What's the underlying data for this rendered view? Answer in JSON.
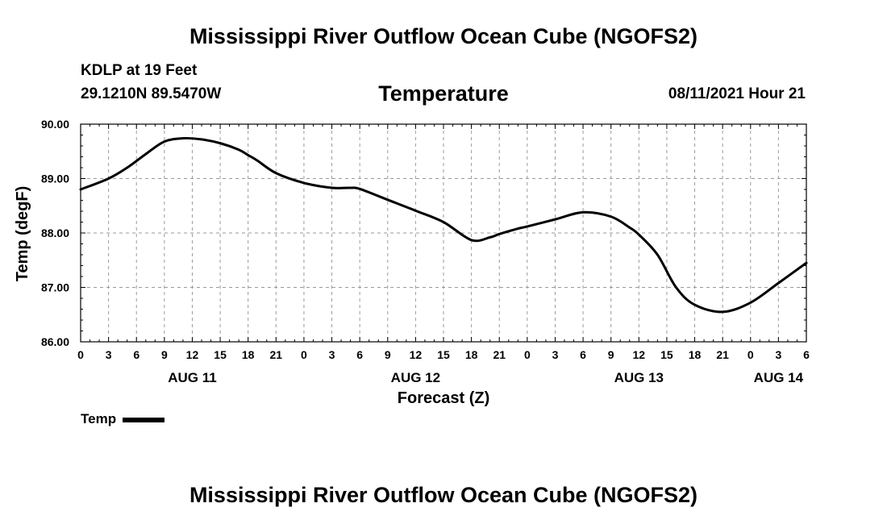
{
  "page": {
    "title_top": "Mississippi River Outflow Ocean Cube (NGOFS2)",
    "title_bottom": "Mississippi River Outflow Ocean Cube (NGOFS2)",
    "station": "KDLP at 19 Feet",
    "coords": "29.1210N  89.5470W",
    "variable": "Temperature",
    "datetime": "08/11/2021 Hour 21"
  },
  "chart_data": {
    "type": "line",
    "title": "Temperature",
    "xlabel": "Forecast (Z)",
    "ylabel": "Temp (degF)",
    "x_unit": "hours since 2021-08-11 00Z",
    "xlim": [
      0,
      78
    ],
    "ylim": [
      86.0,
      90.0
    ],
    "y_ticks": [
      86.0,
      87.0,
      88.0,
      89.0,
      90.0
    ],
    "y_tick_labels": [
      "86.00",
      "87.00",
      "88.00",
      "89.00",
      "90.00"
    ],
    "x_ticks": [
      0,
      3,
      6,
      9,
      12,
      15,
      18,
      21,
      24,
      27,
      30,
      33,
      36,
      39,
      42,
      45,
      48,
      51,
      54,
      57,
      60,
      63,
      66,
      69,
      72,
      75,
      78
    ],
    "x_tick_labels": [
      "0",
      "3",
      "6",
      "9",
      "12",
      "15",
      "18",
      "21",
      "0",
      "3",
      "6",
      "9",
      "12",
      "15",
      "18",
      "21",
      "0",
      "3",
      "6",
      "9",
      "12",
      "15",
      "18",
      "21",
      "0",
      "3",
      "6"
    ],
    "date_labels": [
      {
        "hour": 12,
        "label": "AUG 11"
      },
      {
        "hour": 36,
        "label": "AUG 12"
      },
      {
        "hour": 60,
        "label": "AUG 13"
      },
      {
        "hour": 75,
        "label": "AUG 14"
      }
    ],
    "grid": true,
    "legend": [
      {
        "name": "Temp",
        "color": "#000000"
      }
    ],
    "series": [
      {
        "name": "Temp",
        "color": "#000000",
        "x": [
          0,
          3,
          5,
          7,
          9,
          11,
          13,
          15,
          17,
          18,
          19,
          21,
          24,
          27,
          29,
          30,
          33,
          36,
          39,
          42,
          44,
          45,
          47,
          48,
          51,
          54,
          57,
          59,
          60,
          62,
          64,
          66,
          69,
          72,
          75,
          78
        ],
        "values": [
          88.8,
          89.0,
          89.2,
          89.45,
          89.68,
          89.74,
          89.72,
          89.65,
          89.53,
          89.43,
          89.33,
          89.1,
          88.92,
          88.83,
          88.83,
          88.81,
          88.61,
          88.41,
          88.2,
          87.87,
          87.92,
          87.98,
          88.08,
          88.12,
          88.25,
          88.38,
          88.3,
          88.1,
          87.97,
          87.6,
          87.0,
          86.68,
          86.55,
          86.72,
          87.08,
          87.45
        ]
      }
    ]
  }
}
